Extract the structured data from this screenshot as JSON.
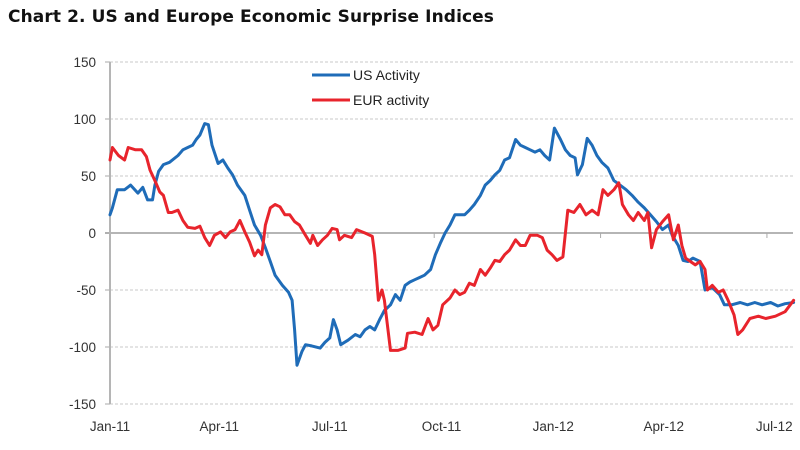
{
  "title": "Chart 2.  US and Europe Economic Surprise Indices",
  "chart_data": {
    "type": "line",
    "title": "Chart 2.  US and Europe Economic Surprise Indices",
    "xlabel": "",
    "ylabel": "",
    "x_unit": "days since 1 Jan 2011",
    "xlim": [
      0,
      563
    ],
    "ylim": [
      -150,
      150
    ],
    "yticks": [
      -150,
      -100,
      -50,
      0,
      50,
      100,
      150
    ],
    "xticks": [
      {
        "day": 0,
        "label": "Jan-11"
      },
      {
        "day": 90,
        "label": "Apr-11"
      },
      {
        "day": 181,
        "label": "Jul-11"
      },
      {
        "day": 273,
        "label": "Oct-11"
      },
      {
        "day": 365,
        "label": "Jan-12"
      },
      {
        "day": 456,
        "label": "Apr-12"
      },
      {
        "day": 547,
        "label": "Jul-12"
      }
    ],
    "grid": "horizontal dashed",
    "legend": "top-center",
    "series": [
      {
        "name": "US Activity",
        "color": "#1f6cb8",
        "points": [
          [
            0,
            16
          ],
          [
            2,
            22
          ],
          [
            6,
            38
          ],
          [
            12,
            38
          ],
          [
            17,
            42
          ],
          [
            23,
            35
          ],
          [
            27,
            40
          ],
          [
            31,
            29
          ],
          [
            35,
            29
          ],
          [
            37,
            42
          ],
          [
            40,
            54
          ],
          [
            44,
            60
          ],
          [
            49,
            62
          ],
          [
            56,
            68
          ],
          [
            60,
            73
          ],
          [
            64,
            75
          ],
          [
            68,
            77
          ],
          [
            71,
            82
          ],
          [
            74,
            86
          ],
          [
            78,
            96
          ],
          [
            81,
            95
          ],
          [
            84,
            77
          ],
          [
            89,
            61
          ],
          [
            93,
            64
          ],
          [
            97,
            57
          ],
          [
            101,
            51
          ],
          [
            105,
            42
          ],
          [
            111,
            33
          ],
          [
            115,
            20
          ],
          [
            119,
            7
          ],
          [
            124,
            -2
          ],
          [
            128,
            -13
          ],
          [
            132,
            -25
          ],
          [
            136,
            -37
          ],
          [
            142,
            -46
          ],
          [
            147,
            -52
          ],
          [
            150,
            -59
          ],
          [
            152,
            -85
          ],
          [
            154,
            -116
          ],
          [
            158,
            -104
          ],
          [
            161,
            -98
          ],
          [
            166,
            -99
          ],
          [
            173,
            -101
          ],
          [
            177,
            -96
          ],
          [
            181,
            -92
          ],
          [
            184,
            -76
          ],
          [
            187,
            -85
          ],
          [
            190,
            -98
          ],
          [
            196,
            -94
          ],
          [
            202,
            -89
          ],
          [
            206,
            -91
          ],
          [
            210,
            -85
          ],
          [
            214,
            -82
          ],
          [
            218,
            -85
          ],
          [
            222,
            -76
          ],
          [
            226,
            -68
          ],
          [
            231,
            -63
          ],
          [
            235,
            -54
          ],
          [
            239,
            -59
          ],
          [
            243,
            -46
          ],
          [
            247,
            -43
          ],
          [
            251,
            -41
          ],
          [
            255,
            -39
          ],
          [
            259,
            -37
          ],
          [
            264,
            -32
          ],
          [
            268,
            -19
          ],
          [
            272,
            -9
          ],
          [
            276,
            0
          ],
          [
            280,
            7
          ],
          [
            284,
            16
          ],
          [
            288,
            16
          ],
          [
            292,
            16
          ],
          [
            296,
            20
          ],
          [
            300,
            25
          ],
          [
            305,
            33
          ],
          [
            309,
            42
          ],
          [
            313,
            46
          ],
          [
            317,
            51
          ],
          [
            321,
            55
          ],
          [
            325,
            64
          ],
          [
            329,
            66
          ],
          [
            334,
            82
          ],
          [
            338,
            77
          ],
          [
            342,
            75
          ],
          [
            346,
            73
          ],
          [
            350,
            71
          ],
          [
            354,
            73
          ],
          [
            358,
            68
          ],
          [
            362,
            64
          ],
          [
            366,
            92
          ],
          [
            371,
            82
          ],
          [
            375,
            73
          ],
          [
            379,
            68
          ],
          [
            383,
            66
          ],
          [
            385,
            51
          ],
          [
            389,
            60
          ],
          [
            393,
            83
          ],
          [
            397,
            77
          ],
          [
            401,
            68
          ],
          [
            405,
            62
          ],
          [
            410,
            57
          ],
          [
            415,
            46
          ],
          [
            420,
            42
          ],
          [
            425,
            38
          ],
          [
            430,
            33
          ],
          [
            435,
            27
          ],
          [
            440,
            22
          ],
          [
            445,
            16
          ],
          [
            450,
            10
          ],
          [
            455,
            3
          ],
          [
            460,
            7
          ],
          [
            463,
            -2
          ],
          [
            468,
            -11
          ],
          [
            472,
            -24
          ],
          [
            476,
            -25
          ],
          [
            480,
            -22
          ],
          [
            486,
            -25
          ],
          [
            490,
            -50
          ],
          [
            496,
            -48
          ],
          [
            502,
            -54
          ],
          [
            506,
            -63
          ],
          [
            512,
            -63
          ],
          [
            519,
            -61
          ],
          [
            525,
            -63
          ],
          [
            531,
            -61
          ],
          [
            537,
            -63
          ],
          [
            544,
            -61
          ],
          [
            550,
            -64
          ],
          [
            556,
            -62
          ],
          [
            563,
            -61
          ]
        ]
      },
      {
        "name": "EUR activity",
        "color": "#e8242c",
        "points": [
          [
            0,
            64
          ],
          [
            2,
            75
          ],
          [
            7,
            68
          ],
          [
            12,
            64
          ],
          [
            15,
            75
          ],
          [
            21,
            73
          ],
          [
            26,
            73
          ],
          [
            30,
            67
          ],
          [
            33,
            55
          ],
          [
            37,
            46
          ],
          [
            41,
            36
          ],
          [
            44,
            33
          ],
          [
            48,
            18
          ],
          [
            51,
            18
          ],
          [
            56,
            20
          ],
          [
            60,
            11
          ],
          [
            64,
            5
          ],
          [
            70,
            4
          ],
          [
            74,
            6
          ],
          [
            78,
            -4
          ],
          [
            82,
            -11
          ],
          [
            86,
            -2
          ],
          [
            91,
            1
          ],
          [
            95,
            -4
          ],
          [
            99,
            1
          ],
          [
            103,
            3
          ],
          [
            107,
            11
          ],
          [
            111,
            1
          ],
          [
            115,
            -8
          ],
          [
            119,
            -20
          ],
          [
            122,
            -15
          ],
          [
            125,
            -19
          ],
          [
            128,
            7
          ],
          [
            132,
            22
          ],
          [
            136,
            25
          ],
          [
            140,
            23
          ],
          [
            144,
            16
          ],
          [
            148,
            16
          ],
          [
            152,
            10
          ],
          [
            156,
            7
          ],
          [
            161,
            -2
          ],
          [
            165,
            -9
          ],
          [
            167,
            -2
          ],
          [
            171,
            -11
          ],
          [
            175,
            -6
          ],
          [
            179,
            -2
          ],
          [
            183,
            4
          ],
          [
            187,
            3
          ],
          [
            189,
            -6
          ],
          [
            193,
            -2
          ],
          [
            199,
            -4
          ],
          [
            203,
            3
          ],
          [
            210,
            0
          ],
          [
            216,
            -3
          ],
          [
            218,
            -19
          ],
          [
            221,
            -59
          ],
          [
            224,
            -50
          ],
          [
            226,
            -59
          ],
          [
            231,
            -103
          ],
          [
            237,
            -103
          ],
          [
            243,
            -101
          ],
          [
            245,
            -88
          ],
          [
            251,
            -87
          ],
          [
            257,
            -89
          ],
          [
            262,
            -75
          ],
          [
            266,
            -85
          ],
          [
            270,
            -81
          ],
          [
            274,
            -63
          ],
          [
            280,
            -57
          ],
          [
            284,
            -50
          ],
          [
            288,
            -54
          ],
          [
            292,
            -52
          ],
          [
            296,
            -44
          ],
          [
            300,
            -46
          ],
          [
            305,
            -32
          ],
          [
            309,
            -37
          ],
          [
            313,
            -31
          ],
          [
            317,
            -24
          ],
          [
            321,
            -25
          ],
          [
            325,
            -19
          ],
          [
            329,
            -15
          ],
          [
            334,
            -6
          ],
          [
            338,
            -11
          ],
          [
            342,
            -11
          ],
          [
            346,
            -2
          ],
          [
            352,
            -2
          ],
          [
            356,
            -4
          ],
          [
            360,
            -15
          ],
          [
            364,
            -19
          ],
          [
            368,
            -24
          ],
          [
            373,
            -21
          ],
          [
            377,
            20
          ],
          [
            382,
            18
          ],
          [
            387,
            25
          ],
          [
            392,
            16
          ],
          [
            397,
            20
          ],
          [
            402,
            16
          ],
          [
            406,
            38
          ],
          [
            410,
            33
          ],
          [
            415,
            38
          ],
          [
            419,
            44
          ],
          [
            422,
            25
          ],
          [
            427,
            16
          ],
          [
            431,
            11
          ],
          [
            435,
            18
          ],
          [
            440,
            11
          ],
          [
            443,
            18
          ],
          [
            446,
            -13
          ],
          [
            450,
            3
          ],
          [
            455,
            10
          ],
          [
            460,
            16
          ],
          [
            464,
            -6
          ],
          [
            468,
            7
          ],
          [
            471,
            -11
          ],
          [
            474,
            -22
          ],
          [
            478,
            -25
          ],
          [
            482,
            -28
          ],
          [
            486,
            -25
          ],
          [
            490,
            -32
          ],
          [
            492,
            -50
          ],
          [
            496,
            -46
          ],
          [
            501,
            -52
          ],
          [
            505,
            -50
          ],
          [
            509,
            -59
          ],
          [
            514,
            -72
          ],
          [
            517,
            -89
          ],
          [
            521,
            -85
          ],
          [
            527,
            -75
          ],
          [
            534,
            -73
          ],
          [
            540,
            -75
          ],
          [
            548,
            -73
          ],
          [
            556,
            -69
          ],
          [
            563,
            -59
          ]
        ]
      }
    ]
  }
}
